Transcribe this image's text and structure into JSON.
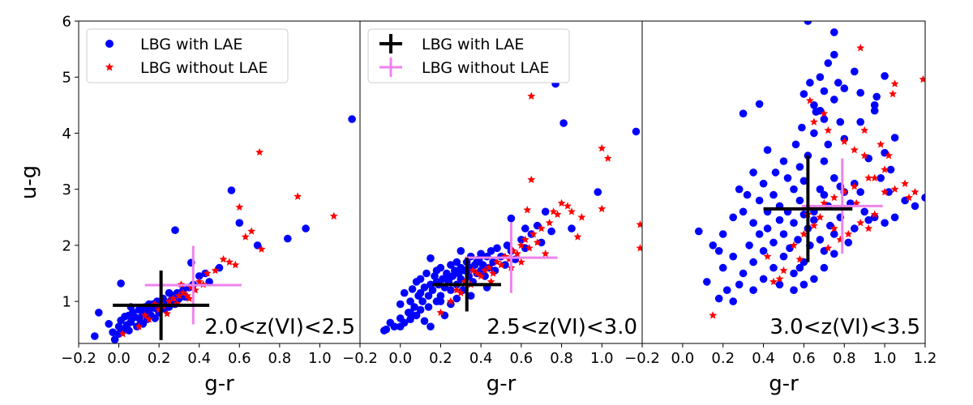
{
  "colors": {
    "blue": "#0000ff",
    "red": "#ff0000",
    "black": "#000000",
    "violet": "#ee82ee"
  },
  "chart_data": [
    {
      "type": "scatter",
      "panel": "z1",
      "xlabel": "g-r",
      "ylabel": "u-g",
      "xlim": [
        -0.2,
        1.2
      ],
      "ylim": [
        0.25,
        6.0
      ],
      "xticks": [
        "−0.2",
        "0.0",
        "0.2",
        "0.4",
        "0.6",
        "0.8",
        "1.0"
      ],
      "xtick_values": [
        -0.2,
        0.0,
        0.2,
        0.4,
        0.6,
        0.8,
        1.0
      ],
      "yticks": [
        "1",
        "2",
        "3",
        "4",
        "5",
        "6"
      ],
      "ytick_values": [
        1,
        2,
        3,
        4,
        5,
        6
      ],
      "annotation": "2.0<z(VI)<2.5",
      "legend": {
        "location": "upper-left",
        "style": "markers",
        "entries": [
          "LBG with LAE",
          "LBG without LAE"
        ]
      },
      "series": [
        {
          "name": "LBG with LAE",
          "marker": "circle",
          "color": "#0000ff",
          "points": []
        },
        {
          "name": "LBG without LAE",
          "marker": "star",
          "color": "#ff0000",
          "points": []
        }
      ],
      "mean_with_lae": {
        "x": 0.21,
        "y": 0.93,
        "xerr": 0.24,
        "yerr": 0.62
      },
      "mean_without_lae": {
        "x": 0.37,
        "y": 1.29,
        "xerr": 0.24,
        "yerr": 0.7
      }
    },
    {
      "type": "scatter",
      "panel": "z2",
      "xlabel": "g-r",
      "ylabel": "",
      "xlim": [
        -0.2,
        1.2
      ],
      "ylim": [
        0.25,
        6.0
      ],
      "xticks": [
        "−0.2",
        "0.0",
        "0.2",
        "0.4",
        "0.6",
        "0.8",
        "1.0"
      ],
      "xtick_values": [
        -0.2,
        0.0,
        0.2,
        0.4,
        0.6,
        0.8,
        1.0
      ],
      "yticks": [],
      "ytick_values": [],
      "annotation": "2.5<z(VI)<3.0",
      "legend": {
        "location": "upper-left",
        "style": "errorbars",
        "entries": [
          "LBG with LAE",
          "LBG without LAE"
        ]
      },
      "series": [
        {
          "name": "LBG with LAE",
          "marker": "circle",
          "color": "#0000ff",
          "points": []
        },
        {
          "name": "LBG without LAE",
          "marker": "star",
          "color": "#ff0000",
          "points": []
        }
      ],
      "mean_with_lae": {
        "x": 0.33,
        "y": 1.3,
        "xerr": 0.17,
        "yerr": 0.48
      },
      "mean_without_lae": {
        "x": 0.55,
        "y": 1.78,
        "xerr": 0.23,
        "yerr": 0.63
      }
    },
    {
      "type": "scatter",
      "panel": "z3",
      "xlabel": "g-r",
      "ylabel": "",
      "xlim": [
        -0.2,
        1.2
      ],
      "ylim": [
        0.25,
        6.0
      ],
      "xticks": [
        "−0.2",
        "0.0",
        "0.2",
        "0.4",
        "0.6",
        "0.8",
        "1.0",
        "1.2"
      ],
      "xtick_values": [
        -0.2,
        0.0,
        0.2,
        0.4,
        0.6,
        0.8,
        1.0,
        1.2
      ],
      "yticks": [],
      "ytick_values": [],
      "annotation": "3.0<z(VI)<3.5",
      "legend": null,
      "series": [
        {
          "name": "LBG with LAE",
          "marker": "circle",
          "color": "#0000ff",
          "points": []
        },
        {
          "name": "LBG without LAE",
          "marker": "star",
          "color": "#ff0000",
          "points": []
        }
      ],
      "mean_with_lae": {
        "x": 0.62,
        "y": 2.65,
        "xerr": 0.22,
        "yerr": 0.95
      },
      "mean_without_lae": {
        "x": 0.79,
        "y": 2.7,
        "xerr": 0.2,
        "yerr": 0.85
      }
    }
  ]
}
